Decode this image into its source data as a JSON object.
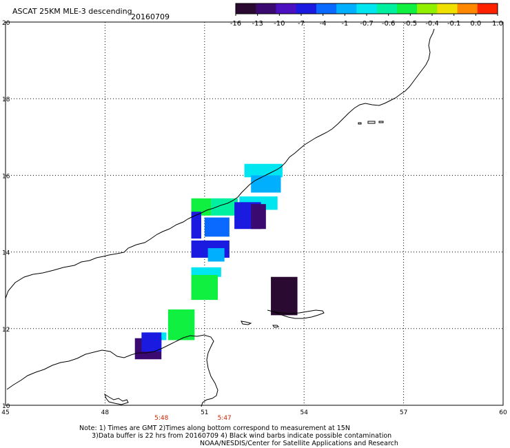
{
  "header": {
    "title": "ASCAT 25KM MLE-3 descending",
    "date": "20160709"
  },
  "colorbar": {
    "labels": [
      "-16",
      "-13",
      "-10",
      "-7",
      "-4",
      "-1",
      "-0.7",
      "-0.6",
      "-0.5",
      "-0.4",
      "-0.1",
      "0.0",
      "1.0"
    ],
    "colors": [
      "#2a0a30",
      "#3a0a70",
      "#4b10c0",
      "#1a1ae0",
      "#0a6aff",
      "#00b0ff",
      "#00e6f0",
      "#00f0a0",
      "#10f040",
      "#90f000",
      "#f0e000",
      "#ff8800",
      "#ff2200"
    ]
  },
  "map": {
    "lat_labels": [
      "20",
      "18",
      "16",
      "14",
      "12",
      "10"
    ],
    "lon_labels": [
      "45",
      "48",
      "51",
      "54",
      "57",
      "60"
    ],
    "lat_range": [
      10,
      20
    ],
    "lon_range": [
      45,
      60
    ],
    "times": [
      {
        "label": "5:48",
        "lon": 49.7
      },
      {
        "label": "5:47",
        "lon": 51.6
      }
    ],
    "pixels": [
      {
        "lon": 52.2,
        "lat": 15.95,
        "w": 1.15,
        "h": 0.35,
        "color": "#00e6f0"
      },
      {
        "lon": 52.4,
        "lat": 15.55,
        "w": 0.9,
        "h": 0.45,
        "color": "#00b0ff"
      },
      {
        "lon": 52.05,
        "lat": 15.1,
        "w": 1.15,
        "h": 0.35,
        "color": "#00e6f0"
      },
      {
        "lon": 50.6,
        "lat": 14.95,
        "w": 0.6,
        "h": 0.45,
        "color": "#10f040"
      },
      {
        "lon": 51.2,
        "lat": 14.95,
        "w": 0.8,
        "h": 0.45,
        "color": "#00f0a0"
      },
      {
        "lon": 51.9,
        "lat": 14.6,
        "w": 0.8,
        "h": 0.7,
        "color": "#1a1ae0"
      },
      {
        "lon": 52.4,
        "lat": 14.6,
        "w": 0.45,
        "h": 0.65,
        "color": "#3a0a70"
      },
      {
        "lon": 50.6,
        "lat": 14.35,
        "w": 0.3,
        "h": 0.7,
        "color": "#1a1ae0"
      },
      {
        "lon": 51.0,
        "lat": 14.4,
        "w": 0.75,
        "h": 0.5,
        "color": "#0a6aff"
      },
      {
        "lon": 50.6,
        "lat": 13.85,
        "w": 1.15,
        "h": 0.45,
        "color": "#1a1ae0"
      },
      {
        "lon": 51.1,
        "lat": 13.75,
        "w": 0.5,
        "h": 0.35,
        "color": "#00b0ff"
      },
      {
        "lon": 50.6,
        "lat": 13.35,
        "w": 0.9,
        "h": 0.25,
        "color": "#00e6f0"
      },
      {
        "lon": 50.6,
        "lat": 12.75,
        "w": 0.8,
        "h": 0.65,
        "color": "#10f040"
      },
      {
        "lon": 53.0,
        "lat": 12.35,
        "w": 0.8,
        "h": 1.0,
        "color": "#2a0a30"
      },
      {
        "lon": 49.9,
        "lat": 11.7,
        "w": 0.8,
        "h": 0.8,
        "color": "#10f040"
      },
      {
        "lon": 49.2,
        "lat": 11.7,
        "w": 0.65,
        "h": 0.2,
        "color": "#00e6f0"
      },
      {
        "lon": 48.9,
        "lat": 11.2,
        "w": 0.8,
        "h": 0.55,
        "color": "#3a0a70"
      },
      {
        "lon": 49.1,
        "lat": 11.4,
        "w": 0.6,
        "h": 0.5,
        "color": "#1a1ae0"
      }
    ]
  },
  "footer": {
    "note_lines": [
      "Note: 1) Times are GMT 2)Times along bottom correspond to measurement at 15N",
      "      3)Data buffer is 22 hrs from 20160709 4) Black wind barbs indicate possible contamination"
    ],
    "credit": "NOAA/NESDIS/Center for Satellite Applications and Research"
  }
}
